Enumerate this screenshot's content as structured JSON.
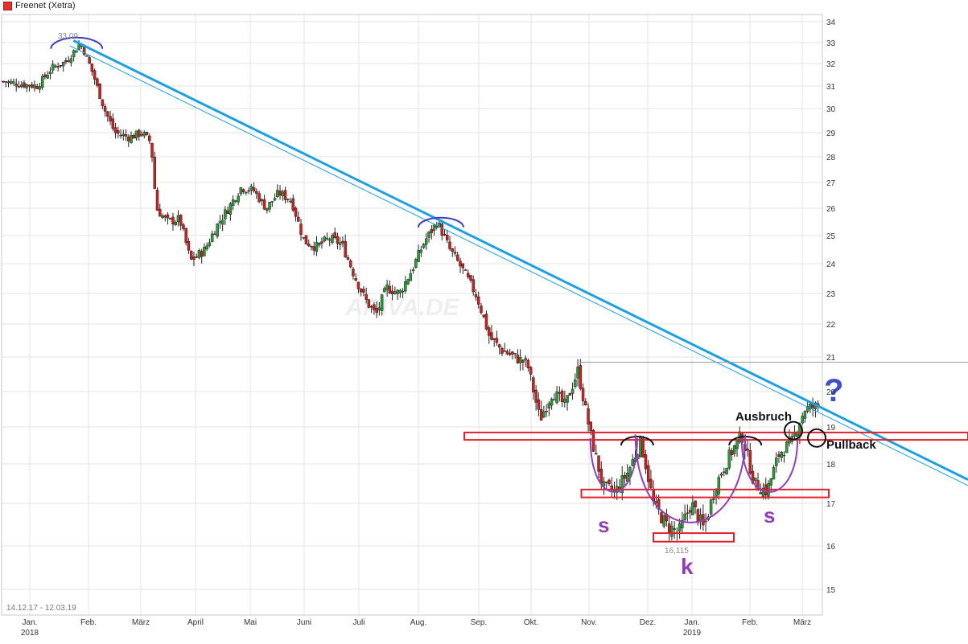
{
  "chart_data": {
    "type": "candlestick",
    "title": "Freenet (Xetra)",
    "date_range": "14.12.17 - 12.03.19",
    "watermark": "ARIVA.DE",
    "y_ticks": [
      15,
      16,
      17,
      18,
      19,
      20,
      21,
      22,
      23,
      24,
      25,
      26,
      27,
      28,
      29,
      30,
      31,
      32,
      33,
      34
    ],
    "x_ticks": [
      {
        "label": "Jan.",
        "sub": "2018"
      },
      {
        "label": "Feb.",
        "sub": ""
      },
      {
        "label": "März",
        "sub": ""
      },
      {
        "label": "April",
        "sub": ""
      },
      {
        "label": "Mai",
        "sub": ""
      },
      {
        "label": "Juni",
        "sub": ""
      },
      {
        "label": "Juli",
        "sub": ""
      },
      {
        "label": "Aug.",
        "sub": ""
      },
      {
        "label": "Sep.",
        "sub": ""
      },
      {
        "label": "Okt.",
        "sub": ""
      },
      {
        "label": "Nov.",
        "sub": ""
      },
      {
        "label": "Dez.",
        "sub": ""
      },
      {
        "label": "Jan.",
        "sub": "2019"
      },
      {
        "label": "Feb.",
        "sub": ""
      },
      {
        "label": "März",
        "sub": ""
      }
    ],
    "high_label": "33,09",
    "low_label": "16,115",
    "close_series": [
      [
        "2017-12-14",
        31.2
      ],
      [
        "2017-12-22",
        31.1
      ],
      [
        "2018-01-02",
        31.0
      ],
      [
        "2018-01-10",
        31.8
      ],
      [
        "2018-01-18",
        32.1
      ],
      [
        "2018-01-26",
        33.0
      ],
      [
        "2018-02-02",
        31.5
      ],
      [
        "2018-02-08",
        30.0
      ],
      [
        "2018-02-14",
        29.0
      ],
      [
        "2018-02-22",
        28.8
      ],
      [
        "2018-03-01",
        29.0
      ],
      [
        "2018-03-06",
        28.6
      ],
      [
        "2018-03-09",
        26.0
      ],
      [
        "2018-03-15",
        25.5
      ],
      [
        "2018-03-22",
        25.6
      ],
      [
        "2018-03-28",
        24.1
      ],
      [
        "2018-04-05",
        24.5
      ],
      [
        "2018-04-11",
        25.3
      ],
      [
        "2018-04-18",
        26.0
      ],
      [
        "2018-04-25",
        26.8
      ],
      [
        "2018-05-02",
        26.7
      ],
      [
        "2018-05-09",
        26.0
      ],
      [
        "2018-05-16",
        26.6
      ],
      [
        "2018-05-23",
        26.3
      ],
      [
        "2018-05-30",
        24.8
      ],
      [
        "2018-06-06",
        24.6
      ],
      [
        "2018-06-13",
        24.9
      ],
      [
        "2018-06-20",
        24.7
      ],
      [
        "2018-06-27",
        23.6
      ],
      [
        "2018-07-03",
        22.8
      ],
      [
        "2018-07-09",
        22.3
      ],
      [
        "2018-07-15",
        23.2
      ],
      [
        "2018-07-22",
        23.0
      ],
      [
        "2018-07-29",
        23.8
      ],
      [
        "2018-08-05",
        24.8
      ],
      [
        "2018-08-12",
        25.5
      ],
      [
        "2018-08-19",
        24.5
      ],
      [
        "2018-08-26",
        23.8
      ],
      [
        "2018-09-03",
        22.9
      ],
      [
        "2018-09-10",
        21.6
      ],
      [
        "2018-09-17",
        21.2
      ],
      [
        "2018-09-24",
        21.0
      ],
      [
        "2018-10-01",
        20.8
      ],
      [
        "2018-10-08",
        19.2
      ],
      [
        "2018-10-15",
        20.0
      ],
      [
        "2018-10-22",
        19.6
      ],
      [
        "2018-10-29",
        20.6
      ],
      [
        "2018-11-05",
        18.8
      ],
      [
        "2018-11-12",
        17.4
      ],
      [
        "2018-11-19",
        17.3
      ],
      [
        "2018-11-26",
        17.8
      ],
      [
        "2018-12-03",
        18.6
      ],
      [
        "2018-12-10",
        17.0
      ],
      [
        "2018-12-17",
        16.5
      ],
      [
        "2018-12-24",
        16.3
      ],
      [
        "2018-12-31",
        17.0
      ],
      [
        "2019-01-07",
        16.4
      ],
      [
        "2019-01-14",
        17.5
      ],
      [
        "2019-01-21",
        18.2
      ],
      [
        "2019-01-28",
        18.8
      ],
      [
        "2019-02-04",
        17.5
      ],
      [
        "2019-02-11",
        17.3
      ],
      [
        "2019-02-18",
        18.3
      ],
      [
        "2019-02-25",
        18.6
      ],
      [
        "2019-03-04",
        19.5
      ],
      [
        "2019-03-12",
        19.6
      ]
    ],
    "annotations": {
      "question": "?",
      "ausbruch": "Ausbruch",
      "pullback": "Pullback",
      "s_left": "s",
      "s_right": "s",
      "k": "k"
    },
    "colors": {
      "up": "#2e9b3a",
      "down": "#d0201f",
      "trendline": "#1e9fe0",
      "zone": "#e0202a",
      "arc_blue": "#3f3fbf",
      "arc_purple": "#9040b0",
      "arc_black": "#111111",
      "annotation_purple": "#9040b0",
      "question": "#3f4fc8",
      "grid": "#e3e3e3"
    }
  }
}
